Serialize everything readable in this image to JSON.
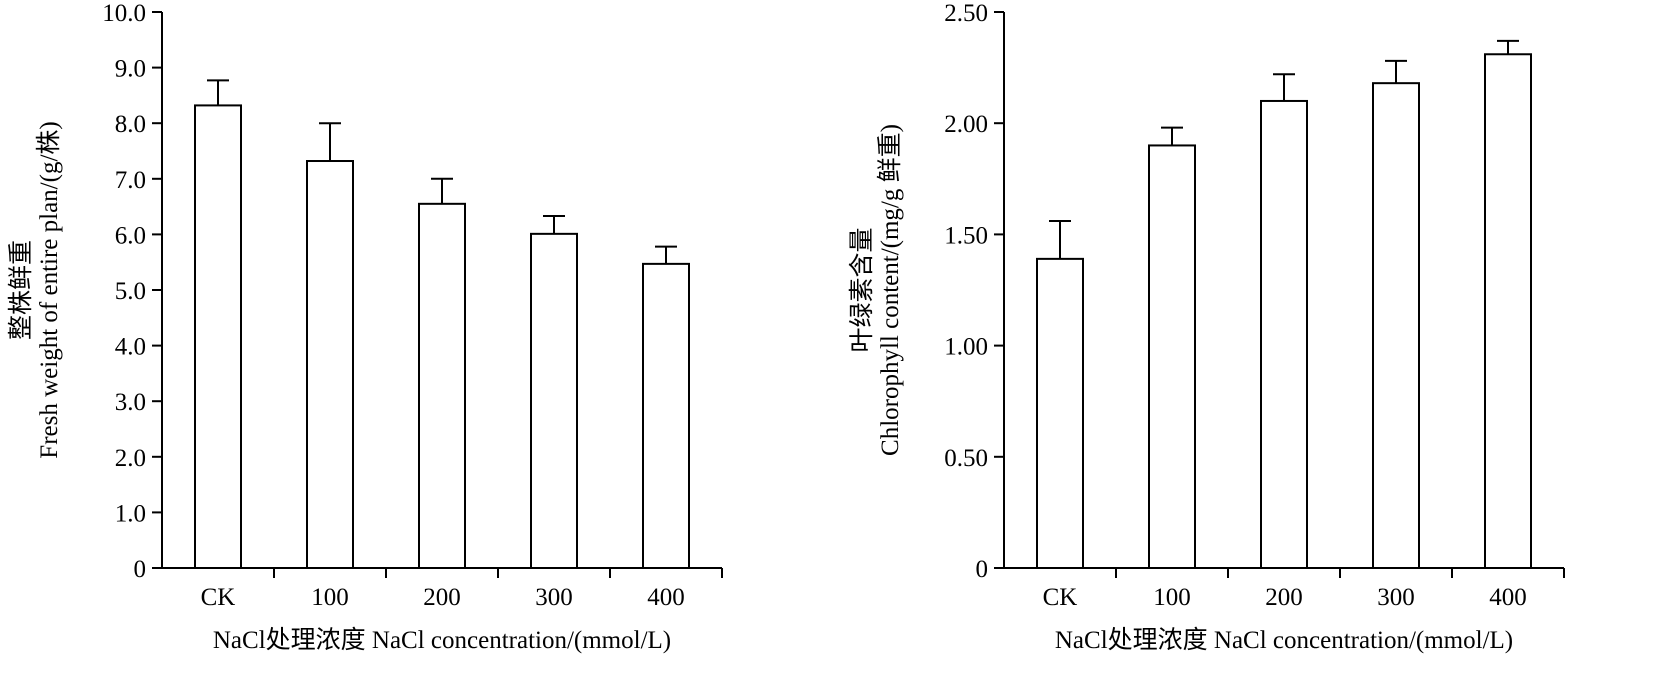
{
  "chart_data": [
    {
      "type": "bar",
      "categories": [
        "CK",
        "100",
        "200",
        "300",
        "400"
      ],
      "values": [
        8.32,
        7.32,
        6.55,
        6.01,
        5.47
      ],
      "errors": [
        0.45,
        0.68,
        0.45,
        0.32,
        0.31
      ],
      "ylim": [
        0,
        10.0
      ],
      "yticks": [
        "0",
        "1.0",
        "2.0",
        "3.0",
        "4.0",
        "5.0",
        "6.0",
        "7.0",
        "8.0",
        "9.0",
        "10.0"
      ],
      "ylabel_cn": "整株鲜重",
      "ylabel_en": "Fresh weight of entire plan/(g/株)",
      "xlabel": "NaCl处理浓度 NaCl concentration/(mmol/L)",
      "grid": false
    },
    {
      "type": "bar",
      "categories": [
        "CK",
        "100",
        "200",
        "300",
        "400"
      ],
      "values": [
        1.39,
        1.9,
        2.1,
        2.18,
        2.31
      ],
      "errors": [
        0.17,
        0.08,
        0.12,
        0.1,
        0.06
      ],
      "ylim": [
        0,
        2.5
      ],
      "yticks": [
        "0",
        "0.50",
        "1.00",
        "1.50",
        "2.00",
        "2.50"
      ],
      "ylabel_cn": "叶绿素含量",
      "ylabel_en": "Chlorophyll content/(mg/g 鲜重)",
      "xlabel": "NaCl处理浓度 NaCl concentration/(mmol/L)",
      "grid": false
    }
  ]
}
